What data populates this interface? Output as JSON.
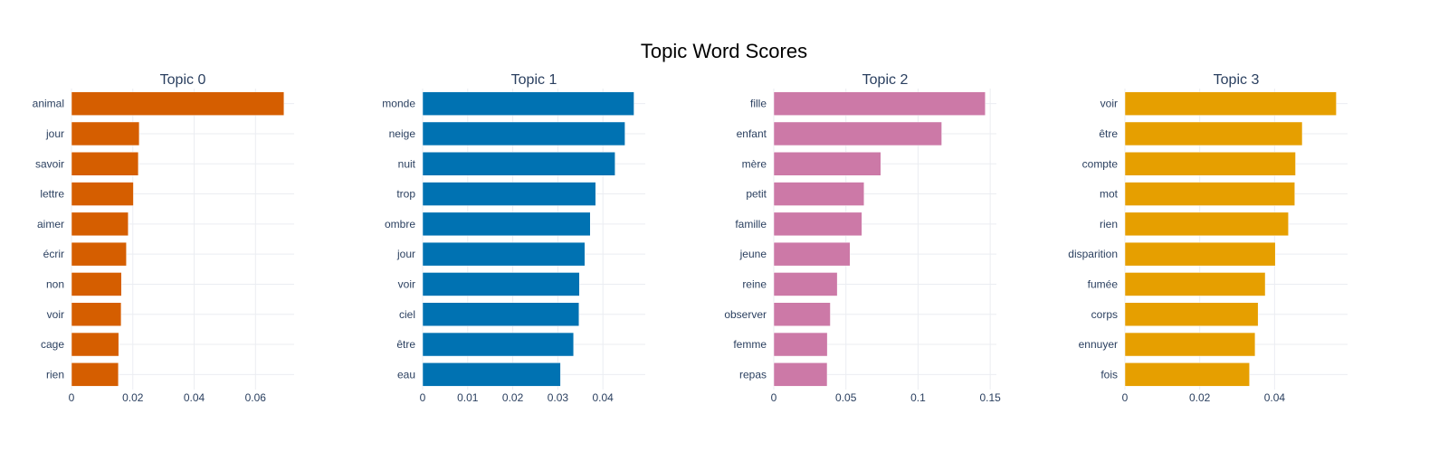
{
  "chart_data": {
    "type": "bar",
    "title": "Topic Word Scores",
    "orientation": "horizontal",
    "panels": [
      {
        "title": "Topic 0",
        "color": "#D55E00",
        "categories": [
          "animal",
          "jour",
          "savoir",
          "lettre",
          "aimer",
          "écrir",
          "non",
          "voir",
          "cage",
          "rien"
        ],
        "values": [
          0.0693,
          0.0221,
          0.0218,
          0.0202,
          0.0185,
          0.0179,
          0.0163,
          0.0162,
          0.0154,
          0.0153
        ],
        "xlim": [
          0,
          0.0726
        ],
        "ticks": [
          0,
          0.02,
          0.04,
          0.06
        ],
        "tick_labels": [
          "0",
          "0.02",
          "0.04",
          "0.06"
        ]
      },
      {
        "title": "Topic 1",
        "color": "#0072B2",
        "categories": [
          "monde",
          "neige",
          "nuit",
          "trop",
          "ombre",
          "jour",
          "voir",
          "ciel",
          "être",
          "eau"
        ],
        "values": [
          0.0469,
          0.0449,
          0.0427,
          0.0384,
          0.0372,
          0.036,
          0.0348,
          0.0347,
          0.0335,
          0.0306
        ],
        "xlim": [
          0,
          0.0494
        ],
        "ticks": [
          0,
          0.01,
          0.02,
          0.03,
          0.04
        ],
        "tick_labels": [
          "0",
          "0.01",
          "0.02",
          "0.03",
          "0.04"
        ]
      },
      {
        "title": "Topic 2",
        "color": "#CC79A7",
        "categories": [
          "fille",
          "enfant",
          "mère",
          "petit",
          "famille",
          "jeune",
          "reine",
          "observer",
          "femme",
          "repas"
        ],
        "values": [
          0.1466,
          0.1164,
          0.0742,
          0.0626,
          0.0611,
          0.0529,
          0.044,
          0.0392,
          0.0371,
          0.037
        ],
        "xlim": [
          0,
          0.1543
        ],
        "ticks": [
          0,
          0.05,
          0.1,
          0.15
        ],
        "tick_labels": [
          "0",
          "0.05",
          "0.1",
          "0.15"
        ]
      },
      {
        "title": "Topic 3",
        "color": "#E69F00",
        "categories": [
          "voir",
          "être",
          "compte",
          "mot",
          "rien",
          "disparition",
          "fumée",
          "corps",
          "ennuyer",
          "fois"
        ],
        "values": [
          0.0565,
          0.0474,
          0.0456,
          0.0454,
          0.0437,
          0.0402,
          0.0375,
          0.0356,
          0.0348,
          0.0333
        ],
        "xlim": [
          0,
          0.0595
        ],
        "ticks": [
          0,
          0.02,
          0.04
        ],
        "tick_labels": [
          "0",
          "0.02",
          "0.04"
        ]
      }
    ],
    "grid": true,
    "legend": "none"
  }
}
